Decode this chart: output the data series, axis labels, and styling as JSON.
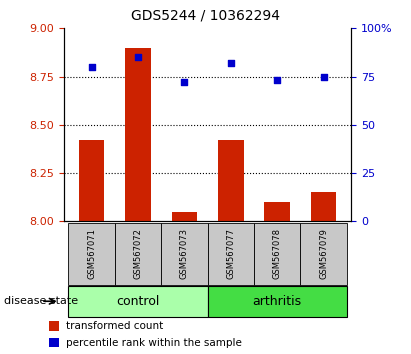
{
  "title": "GDS5244 / 10362294",
  "samples": [
    "GSM567071",
    "GSM567072",
    "GSM567073",
    "GSM567077",
    "GSM567078",
    "GSM567079"
  ],
  "transformed_count": [
    8.42,
    8.9,
    8.05,
    8.42,
    8.1,
    8.15
  ],
  "percentile_rank": [
    80,
    85,
    72,
    82,
    73,
    75
  ],
  "groups": [
    {
      "label": "control",
      "indices": [
        0,
        1,
        2
      ],
      "color": "#AAFFAA"
    },
    {
      "label": "arthritis",
      "indices": [
        3,
        4,
        5
      ],
      "color": "#44DD44"
    }
  ],
  "ylim_left": [
    8.0,
    9.0
  ],
  "ylim_right": [
    0,
    100
  ],
  "yticks_left": [
    8.0,
    8.25,
    8.5,
    8.75,
    9.0
  ],
  "yticks_right": [
    0,
    25,
    50,
    75,
    100
  ],
  "ytick_labels_right": [
    "0",
    "25",
    "50",
    "75",
    "100%"
  ],
  "bar_color": "#CC2200",
  "dot_color": "#0000CC",
  "bar_width": 0.55,
  "dotted_lines": [
    8.25,
    8.5,
    8.75
  ],
  "label_area_color": "#c8c8c8",
  "legend_red_label": "transformed count",
  "legend_blue_label": "percentile rank within the sample",
  "disease_state_label": "disease state",
  "title_fontsize": 10,
  "tick_fontsize": 8,
  "sample_fontsize": 6,
  "group_fontsize": 9
}
